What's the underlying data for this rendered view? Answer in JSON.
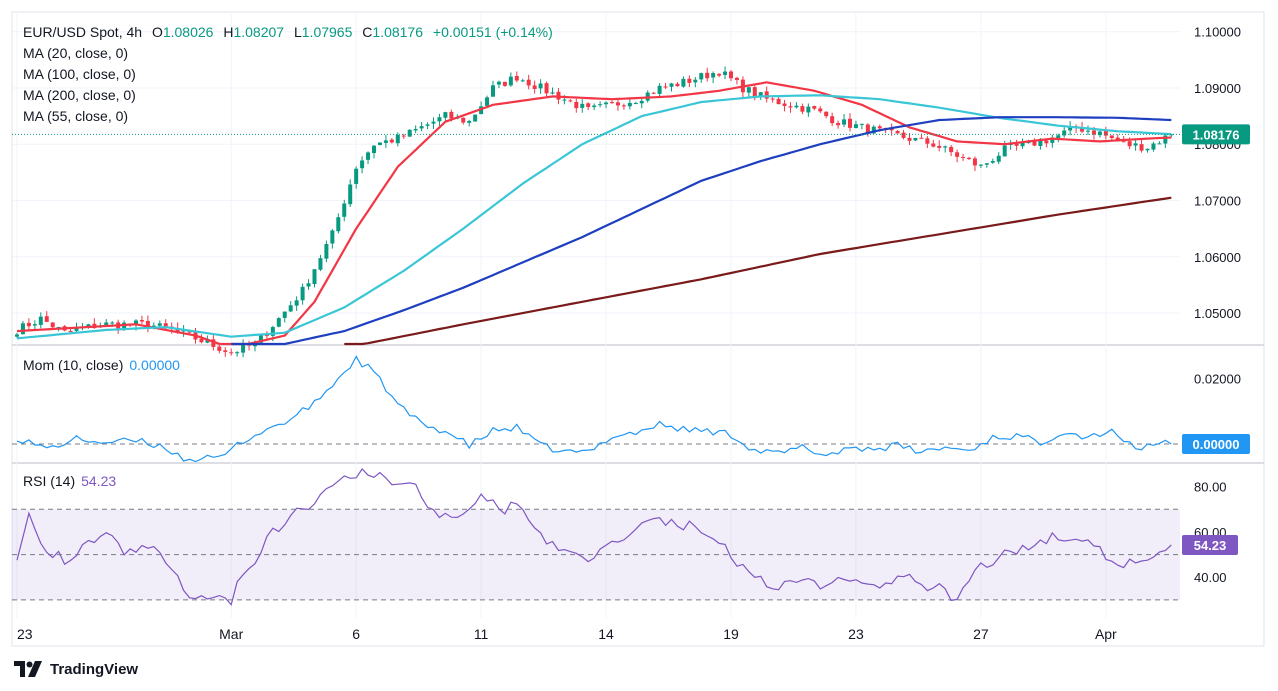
{
  "legend": {
    "symbol": "EUR/USD Spot, 4h",
    "o_label": "O",
    "o": "1.08026",
    "h_label": "H",
    "h": "1.08207",
    "l_label": "L",
    "l": "1.07965",
    "c_label": "C",
    "c": "1.08176",
    "change": "+0.00151 (+0.14%)"
  },
  "ma_legend": [
    "MA (20, close, 0)",
    "MA (100, close, 0)",
    "MA (200, close, 0)",
    "MA (55, close, 0)"
  ],
  "mom": {
    "title": "Mom (10, close)",
    "value": "0.00000"
  },
  "rsi": {
    "title": "RSI (14)",
    "value": "54.23"
  },
  "brand": "TradingView",
  "colors": {
    "up": "#089981",
    "down": "#f23645",
    "ma20": "#f23645",
    "ma55": "#3ac6d6",
    "ma100": "#1e3fbf",
    "ma200": "#7a1a1a",
    "mom": "#2196f3",
    "rsi": "#7e57c2",
    "last": "#089981"
  },
  "chart_data": [
    {
      "type": "candlestick",
      "title": "EUR/USD Spot, 4h",
      "ylim": [
        1.0445,
        1.1035
      ],
      "y_ticks": [
        "1.10000",
        "1.09000",
        "1.08000",
        "1.07000",
        "1.06000",
        "1.05000"
      ],
      "y_tick_values": [
        1.1,
        1.09,
        1.08,
        1.07,
        1.06,
        1.05
      ],
      "last_price": "1.08176",
      "x_labels": [
        "23",
        "Mar",
        "6",
        "11",
        "14",
        "19",
        "23",
        "27",
        "Apr"
      ],
      "x_label_bars": [
        0,
        36,
        57,
        78,
        99,
        120,
        141,
        162,
        183
      ],
      "series": [
        {
          "name": "MA (20, close, 0)",
          "anchors": [
            [
              0,
              1.0468
            ],
            [
              20,
              1.048
            ],
            [
              30,
              1.046
            ],
            [
              36,
              1.0438
            ],
            [
              45,
              1.046
            ],
            [
              50,
              1.052
            ],
            [
              57,
              1.065
            ],
            [
              64,
              1.076
            ],
            [
              72,
              1.084
            ],
            [
              80,
              1.087
            ],
            [
              90,
              1.0885
            ],
            [
              100,
              1.088
            ],
            [
              110,
              1.0885
            ],
            [
              118,
              1.0895
            ],
            [
              126,
              1.091
            ],
            [
              134,
              1.0895
            ],
            [
              142,
              1.087
            ],
            [
              150,
              1.083
            ],
            [
              158,
              1.0805
            ],
            [
              166,
              1.08
            ],
            [
              174,
              1.081
            ],
            [
              182,
              1.0805
            ],
            [
              190,
              1.081
            ],
            [
              194,
              1.0812
            ]
          ]
        },
        {
          "name": "MA (55, close, 0)",
          "anchors": [
            [
              0,
              1.0455
            ],
            [
              15,
              1.047
            ],
            [
              25,
              1.0475
            ],
            [
              36,
              1.0458
            ],
            [
              45,
              1.0465
            ],
            [
              55,
              1.051
            ],
            [
              65,
              1.0575
            ],
            [
              75,
              1.065
            ],
            [
              85,
              1.073
            ],
            [
              95,
              1.08
            ],
            [
              105,
              1.085
            ],
            [
              115,
              1.0875
            ],
            [
              125,
              1.0885
            ],
            [
              135,
              1.0887
            ],
            [
              145,
              1.088
            ],
            [
              155,
              1.0865
            ],
            [
              165,
              1.0847
            ],
            [
              175,
              1.0833
            ],
            [
              185,
              1.0823
            ],
            [
              194,
              1.0818
            ]
          ]
        },
        {
          "name": "MA (100, close, 0)",
          "anchors": [
            [
              36,
              1.0438
            ],
            [
              45,
              1.0445
            ],
            [
              55,
              1.0468
            ],
            [
              65,
              1.0505
            ],
            [
              75,
              1.0545
            ],
            [
              85,
              1.059
            ],
            [
              95,
              1.0635
            ],
            [
              105,
              1.0685
            ],
            [
              115,
              1.0735
            ],
            [
              125,
              1.077
            ],
            [
              135,
              1.08
            ],
            [
              145,
              1.0825
            ],
            [
              155,
              1.0843
            ],
            [
              165,
              1.0848
            ],
            [
              175,
              1.0848
            ],
            [
              185,
              1.0847
            ],
            [
              194,
              1.0843
            ]
          ]
        },
        {
          "name": "MA (200, close, 0)",
          "anchors": [
            [
              55,
              1.0438
            ],
            [
              75,
              1.048
            ],
            [
              95,
              1.052
            ],
            [
              115,
              1.056
            ],
            [
              135,
              1.0605
            ],
            [
              155,
              1.064
            ],
            [
              175,
              1.0675
            ],
            [
              194,
              1.0705
            ]
          ]
        }
      ],
      "candles_anchor_closes": [
        [
          0,
          1.047
        ],
        [
          4,
          1.049
        ],
        [
          8,
          1.0465
        ],
        [
          14,
          1.048
        ],
        [
          22,
          1.048
        ],
        [
          26,
          1.047
        ],
        [
          30,
          1.0455
        ],
        [
          36,
          1.043
        ],
        [
          40,
          1.0445
        ],
        [
          44,
          1.049
        ],
        [
          48,
          1.054
        ],
        [
          53,
          1.064
        ],
        [
          57,
          1.076
        ],
        [
          60,
          1.08
        ],
        [
          64,
          1.081
        ],
        [
          68,
          1.083
        ],
        [
          72,
          1.085
        ],
        [
          76,
          1.084
        ],
        [
          80,
          1.09
        ],
        [
          84,
          1.092
        ],
        [
          88,
          1.09
        ],
        [
          92,
          1.088
        ],
        [
          96,
          1.086
        ],
        [
          100,
          1.087
        ],
        [
          104,
          1.088
        ],
        [
          108,
          1.09
        ],
        [
          112,
          1.091
        ],
        [
          118,
          1.093
        ],
        [
          122,
          1.09
        ],
        [
          126,
          1.088
        ],
        [
          130,
          1.087
        ],
        [
          134,
          1.086
        ],
        [
          138,
          1.084
        ],
        [
          142,
          1.083
        ],
        [
          146,
          1.082
        ],
        [
          150,
          1.081
        ],
        [
          154,
          1.08
        ],
        [
          158,
          1.078
        ],
        [
          162,
          1.076
        ],
        [
          166,
          1.079
        ],
        [
          170,
          1.08
        ],
        [
          174,
          1.081
        ],
        [
          178,
          1.083
        ],
        [
          182,
          1.082
        ],
        [
          186,
          1.08
        ],
        [
          190,
          1.0795
        ],
        [
          194,
          1.08176
        ]
      ]
    },
    {
      "type": "line",
      "title": "Mom (10, close)",
      "ylim": [
        -0.0055,
        0.03
      ],
      "y_ticks": [
        "0.02000"
      ],
      "y_tick_values": [
        0.02
      ],
      "zero_line": 0,
      "last_value": "0.00000",
      "anchors": [
        [
          0,
          0.002
        ],
        [
          5,
          -0.0015
        ],
        [
          10,
          0.0015
        ],
        [
          15,
          0.0005
        ],
        [
          20,
          0.001
        ],
        [
          25,
          -0.001
        ],
        [
          28,
          -0.0045
        ],
        [
          34,
          -0.0045
        ],
        [
          38,
          0.001
        ],
        [
          42,
          0.0045
        ],
        [
          46,
          0.0075
        ],
        [
          50,
          0.0125
        ],
        [
          54,
          0.02
        ],
        [
          57,
          0.026
        ],
        [
          60,
          0.022
        ],
        [
          64,
          0.012
        ],
        [
          68,
          0.006
        ],
        [
          72,
          0.004
        ],
        [
          76,
          -0.0005
        ],
        [
          80,
          0.004
        ],
        [
          84,
          0.005
        ],
        [
          88,
          -0.0005
        ],
        [
          92,
          -0.0025
        ],
        [
          96,
          -0.0025
        ],
        [
          100,
          0.0025
        ],
        [
          104,
          0.0035
        ],
        [
          108,
          0.006
        ],
        [
          112,
          0.0045
        ],
        [
          116,
          0.004
        ],
        [
          120,
          0.003
        ],
        [
          124,
          -0.002
        ],
        [
          128,
          -0.003
        ],
        [
          132,
          -0.001
        ],
        [
          136,
          -0.0035
        ],
        [
          140,
          -0.001
        ],
        [
          144,
          -0.0015
        ],
        [
          148,
          -0.0005
        ],
        [
          152,
          -0.0025
        ],
        [
          156,
          -0.001
        ],
        [
          160,
          -0.002
        ],
        [
          164,
          0.002
        ],
        [
          168,
          0.0025
        ],
        [
          172,
          0.0005
        ],
        [
          176,
          0.004
        ],
        [
          180,
          0.002
        ],
        [
          184,
          0.0045
        ],
        [
          188,
          -0.002
        ],
        [
          191,
          0.0005
        ],
        [
          194,
          0.0
        ]
      ]
    },
    {
      "type": "line",
      "title": "RSI (14)",
      "ylim": [
        22,
        90
      ],
      "y_ticks": [
        "80.00",
        "60.00",
        "40.00"
      ],
      "y_tick_values": [
        80,
        60,
        40
      ],
      "band": [
        30,
        70
      ],
      "mid_line": 50,
      "last_value": "54.23",
      "anchors": [
        [
          0,
          50
        ],
        [
          2,
          68
        ],
        [
          5,
          52
        ],
        [
          8,
          48
        ],
        [
          12,
          55
        ],
        [
          15,
          62
        ],
        [
          18,
          52
        ],
        [
          22,
          55
        ],
        [
          25,
          48
        ],
        [
          28,
          34
        ],
        [
          31,
          31
        ],
        [
          34,
          33
        ],
        [
          36,
          30
        ],
        [
          38,
          43
        ],
        [
          40,
          47
        ],
        [
          43,
          60
        ],
        [
          46,
          66
        ],
        [
          49,
          72
        ],
        [
          52,
          80
        ],
        [
          55,
          85
        ],
        [
          58,
          86
        ],
        [
          61,
          84
        ],
        [
          64,
          80
        ],
        [
          67,
          83
        ],
        [
          69,
          70
        ],
        [
          72,
          66
        ],
        [
          75,
          70
        ],
        [
          78,
          77
        ],
        [
          80,
          73
        ],
        [
          82,
          70
        ],
        [
          85,
          72
        ],
        [
          87,
          60
        ],
        [
          90,
          54
        ],
        [
          93,
          50
        ],
        [
          96,
          48
        ],
        [
          99,
          55
        ],
        [
          102,
          58
        ],
        [
          105,
          64
        ],
        [
          108,
          66
        ],
        [
          111,
          64
        ],
        [
          114,
          62
        ],
        [
          117,
          58
        ],
        [
          120,
          50
        ],
        [
          123,
          40
        ],
        [
          126,
          38
        ],
        [
          129,
          36
        ],
        [
          132,
          40
        ],
        [
          135,
          35
        ],
        [
          138,
          40
        ],
        [
          141,
          38
        ],
        [
          144,
          36
        ],
        [
          147,
          38
        ],
        [
          150,
          39
        ],
        [
          153,
          36
        ],
        [
          156,
          34
        ],
        [
          158,
          30
        ],
        [
          160,
          38
        ],
        [
          162,
          44
        ],
        [
          165,
          49
        ],
        [
          168,
          52
        ],
        [
          171,
          55
        ],
        [
          174,
          58
        ],
        [
          177,
          57
        ],
        [
          180,
          58
        ],
        [
          183,
          50
        ],
        [
          186,
          46
        ],
        [
          189,
          48
        ],
        [
          192,
          50
        ],
        [
          194,
          54.23
        ]
      ]
    }
  ]
}
